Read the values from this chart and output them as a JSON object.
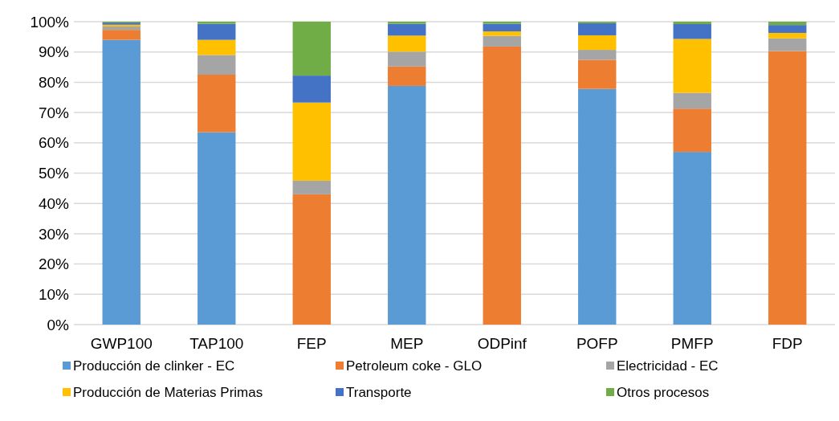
{
  "chart_data": {
    "type": "bar",
    "stacked": true,
    "categories": [
      "GWP100",
      "TAP100",
      "FEP",
      "MEP",
      "ODPinf",
      "POFP",
      "PMFP",
      "FDP"
    ],
    "series": [
      {
        "name": "Producción de clinker - EC",
        "color": "#5b9bd5",
        "values": [
          94,
          63.5,
          0,
          78.8,
          0,
          77.8,
          57,
          0
        ]
      },
      {
        "name": "Petroleum coke - GLO",
        "color": "#ed7d31",
        "values": [
          3.3,
          19,
          43,
          6.4,
          91.8,
          9.6,
          14.3,
          90.3
        ]
      },
      {
        "name": "Electricidad - EC",
        "color": "#a5a5a5",
        "values": [
          1.1,
          6.5,
          4.5,
          4.9,
          3.5,
          3.3,
          5.2,
          4.2
        ]
      },
      {
        "name": "Producción de Materias Primas",
        "color": "#ffc000",
        "values": [
          0.6,
          5,
          25.8,
          5.3,
          1.5,
          4.8,
          17.8,
          1.8
        ]
      },
      {
        "name": "Transporte",
        "color": "#4472c4",
        "values": [
          0.7,
          5.3,
          8.9,
          3.9,
          2.5,
          4,
          4.9,
          2.6
        ]
      },
      {
        "name": "Otros procesos",
        "color": "#70ad47",
        "values": [
          0.3,
          0.7,
          17.8,
          0.7,
          0.7,
          0.5,
          0.8,
          1.1
        ]
      }
    ],
    "ylim": [
      0,
      100
    ],
    "yticks": [
      {
        "value": 0,
        "label": "0%"
      },
      {
        "value": 10,
        "label": "10%"
      },
      {
        "value": 20,
        "label": "20%"
      },
      {
        "value": 30,
        "label": "30%"
      },
      {
        "value": 40,
        "label": "40%"
      },
      {
        "value": 50,
        "label": "50%"
      },
      {
        "value": 60,
        "label": "60%"
      },
      {
        "value": 70,
        "label": "70%"
      },
      {
        "value": 80,
        "label": "80%"
      },
      {
        "value": 90,
        "label": "90%"
      },
      {
        "value": 100,
        "label": "100%"
      }
    ],
    "grid": "y",
    "legend": "bottom"
  }
}
